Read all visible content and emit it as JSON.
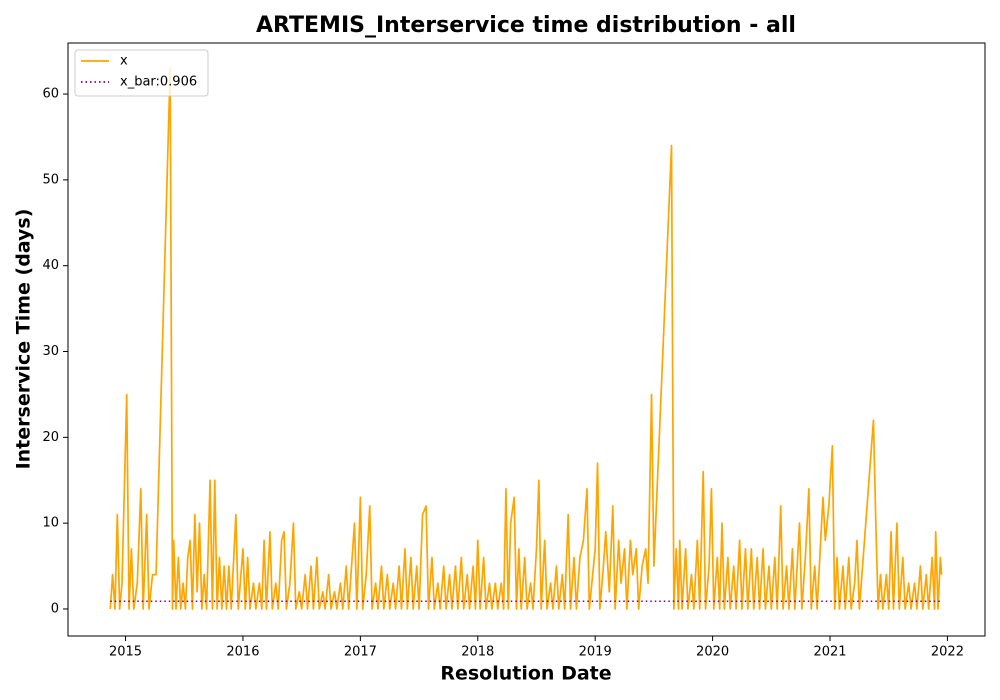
{
  "chart_data": {
    "type": "line",
    "title": "ARTEMIS_Interservice time distribution - all",
    "xlabel": "Resolution Date",
    "ylabel": "Interservice Time (days)",
    "xlim": [
      2014.51,
      2022.32
    ],
    "ylim": [
      -3.15,
      65.95
    ],
    "xticks": [
      2015,
      2016,
      2017,
      2018,
      2019,
      2020,
      2021,
      2022
    ],
    "yticks": [
      0,
      10,
      20,
      30,
      40,
      50,
      60
    ],
    "legend": "upper left",
    "grid": false,
    "series": [
      {
        "name": "x",
        "color": "#ffa500",
        "style": "solid",
        "x": [
          2014.87,
          2014.89,
          2014.91,
          2014.93,
          2014.95,
          2014.97,
          2015.01,
          2015.03,
          2015.05,
          2015.07,
          2015.1,
          2015.13,
          2015.15,
          2015.18,
          2015.2,
          2015.23,
          2015.26,
          2015.38,
          2015.4,
          2015.41,
          2015.43,
          2015.45,
          2015.47,
          2015.49,
          2015.51,
          2015.53,
          2015.55,
          2015.57,
          2015.59,
          2015.61,
          2015.63,
          2015.65,
          2015.67,
          2015.69,
          2015.72,
          2015.74,
          2015.76,
          2015.78,
          2015.8,
          2015.82,
          2015.84,
          2015.86,
          2015.88,
          2015.9,
          2015.94,
          2015.96,
          2016.0,
          2016.02,
          2016.04,
          2016.06,
          2016.09,
          2016.11,
          2016.14,
          2016.16,
          2016.18,
          2016.2,
          2016.23,
          2016.25,
          2016.28,
          2016.3,
          2016.33,
          2016.35,
          2016.37,
          2016.4,
          2016.43,
          2016.45,
          2016.48,
          2016.5,
          2016.53,
          2016.55,
          2016.58,
          2016.6,
          2016.63,
          2016.65,
          2016.68,
          2016.7,
          2016.73,
          2016.75,
          2016.78,
          2016.8,
          2016.83,
          2016.85,
          2016.88,
          2016.9,
          2016.95,
          2016.97,
          2017.0,
          2017.02,
          2017.05,
          2017.08,
          2017.1,
          2017.13,
          2017.15,
          2017.18,
          2017.2,
          2017.23,
          2017.25,
          2017.28,
          2017.3,
          2017.33,
          2017.35,
          2017.38,
          2017.4,
          2017.43,
          2017.45,
          2017.48,
          2017.5,
          2017.53,
          2017.56,
          2017.58,
          2017.61,
          2017.63,
          2017.66,
          2017.68,
          2017.71,
          2017.73,
          2017.76,
          2017.78,
          2017.81,
          2017.83,
          2017.86,
          2017.88,
          2017.91,
          2017.93,
          2017.96,
          2017.98,
          2018.0,
          2018.02,
          2018.05,
          2018.07,
          2018.1,
          2018.12,
          2018.15,
          2018.17,
          2018.2,
          2018.22,
          2018.24,
          2018.26,
          2018.28,
          2018.31,
          2018.33,
          2018.35,
          2018.37,
          2018.4,
          2018.42,
          2018.45,
          2018.47,
          2018.5,
          2018.52,
          2018.54,
          2018.57,
          2018.59,
          2018.62,
          2018.64,
          2018.67,
          2018.69,
          2018.72,
          2018.74,
          2018.77,
          2018.79,
          2018.82,
          2018.84,
          2018.87,
          2018.9,
          2018.93,
          2018.95,
          2019.0,
          2019.02,
          2019.04,
          2019.07,
          2019.09,
          2019.12,
          2019.15,
          2019.17,
          2019.2,
          2019.22,
          2019.25,
          2019.27,
          2019.3,
          2019.32,
          2019.35,
          2019.37,
          2019.4,
          2019.43,
          2019.45,
          2019.48,
          2019.5,
          2019.65,
          2019.67,
          2019.69,
          2019.71,
          2019.72,
          2019.74,
          2019.77,
          2019.79,
          2019.82,
          2019.84,
          2019.87,
          2019.89,
          2019.92,
          2019.94,
          2019.97,
          2019.99,
          2020.01,
          2020.04,
          2020.06,
          2020.08,
          2020.1,
          2020.13,
          2020.15,
          2020.18,
          2020.2,
          2020.23,
          2020.25,
          2020.28,
          2020.3,
          2020.33,
          2020.35,
          2020.38,
          2020.4,
          2020.43,
          2020.45,
          2020.48,
          2020.5,
          2020.53,
          2020.55,
          2020.58,
          2020.6,
          2020.63,
          2020.65,
          2020.68,
          2020.7,
          2020.74,
          2020.76,
          2020.79,
          2020.82,
          2020.84,
          2020.87,
          2020.89,
          2020.94,
          2020.96,
          2020.99,
          2021.02,
          2021.04,
          2021.06,
          2021.08,
          2021.11,
          2021.13,
          2021.16,
          2021.18,
          2021.21,
          2021.23,
          2021.25,
          2021.37,
          2021.39,
          2021.41,
          2021.43,
          2021.45,
          2021.48,
          2021.5,
          2021.52,
          2021.54,
          2021.57,
          2021.59,
          2021.62,
          2021.64,
          2021.67,
          2021.69,
          2021.72,
          2021.74,
          2021.77,
          2021.79,
          2021.82,
          2021.84,
          2021.87,
          2021.89,
          2021.9,
          2021.92,
          2021.94,
          2021.95
        ],
        "values": [
          0,
          4,
          0,
          11,
          0,
          3,
          25,
          0,
          7,
          0,
          3,
          14,
          0,
          11,
          0,
          4,
          4,
          63,
          0,
          8,
          0,
          6,
          0,
          3,
          0,
          6,
          8,
          0,
          11,
          2,
          10,
          0,
          4,
          0,
          15,
          0,
          15,
          0,
          6,
          0,
          5,
          0,
          5,
          0,
          11,
          0,
          7,
          0,
          6,
          0,
          3,
          0,
          3,
          0,
          8,
          0,
          9,
          0,
          3,
          0,
          8,
          9,
          0,
          3,
          10,
          0,
          2,
          0,
          4,
          0,
          5,
          0,
          6,
          0,
          2,
          0,
          4,
          0,
          2,
          0,
          3,
          0,
          5,
          0,
          10,
          0,
          13,
          0,
          4,
          12,
          0,
          3,
          0,
          5,
          0,
          4,
          0,
          3,
          0,
          5,
          0,
          7,
          0,
          6,
          0,
          5,
          0,
          11,
          12,
          0,
          6,
          0,
          3,
          0,
          5,
          0,
          4,
          0,
          5,
          0,
          6,
          0,
          4,
          0,
          5,
          0,
          8,
          0,
          6,
          0,
          3,
          0,
          3,
          0,
          3,
          0,
          14,
          0,
          10,
          13,
          0,
          7,
          0,
          6,
          0,
          3,
          0,
          7,
          15,
          0,
          8,
          0,
          3,
          0,
          5,
          0,
          4,
          0,
          11,
          0,
          6,
          0,
          6,
          8,
          14,
          0,
          7,
          17,
          0,
          5,
          9,
          2,
          12,
          0,
          8,
          3,
          7,
          0,
          8,
          4,
          7,
          0,
          5,
          7,
          3,
          25,
          5,
          54,
          0,
          7,
          0,
          8,
          0,
          7,
          0,
          4,
          0,
          8,
          0,
          16,
          0,
          5,
          14,
          0,
          6,
          0,
          10,
          0,
          6,
          0,
          5,
          0,
          8,
          0,
          7,
          0,
          7,
          0,
          6,
          0,
          7,
          0,
          5,
          0,
          6,
          0,
          12,
          0,
          5,
          0,
          7,
          0,
          10,
          0,
          6,
          14,
          0,
          5,
          0,
          13,
          8,
          12,
          19,
          0,
          6,
          0,
          5,
          0,
          6,
          0,
          3,
          8,
          0,
          22,
          10,
          0,
          4,
          0,
          4,
          0,
          9,
          0,
          10,
          0,
          6,
          0,
          3,
          0,
          3,
          0,
          5,
          0,
          4,
          0,
          6,
          0,
          9,
          0,
          6,
          4
        ]
      },
      {
        "name": "x_bar:0.906",
        "color": "#800080",
        "style": "dotted",
        "x": [
          2014.87,
          2021.95
        ],
        "values": [
          0.906,
          0.906
        ]
      }
    ]
  }
}
